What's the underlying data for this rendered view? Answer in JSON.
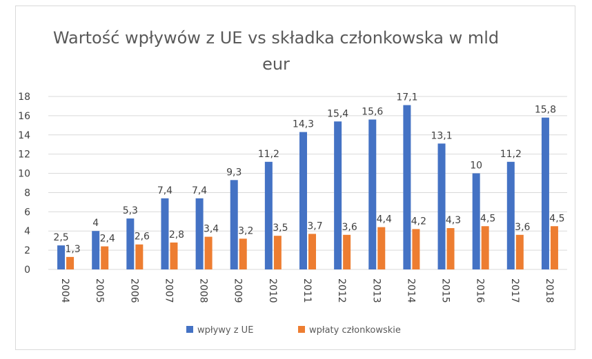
{
  "chart_data": {
    "type": "bar",
    "title": "Wartość wpływów z UE vs składka członkowska w mld eur",
    "categories": [
      "2004",
      "2005",
      "2006",
      "2007",
      "2008",
      "2009",
      "2010",
      "2011",
      "2012",
      "2013",
      "2014",
      "2015",
      "2016",
      "2017",
      "2018"
    ],
    "series": [
      {
        "name": "wpływy z UE",
        "color": "#4472C4",
        "values": [
          2.5,
          4,
          5.3,
          7.4,
          7.4,
          9.3,
          11.2,
          14.3,
          15.4,
          15.6,
          17.1,
          13.1,
          10,
          11.2,
          15.8
        ],
        "labels": [
          "2,5",
          "4",
          "5,3",
          "7,4",
          "7,4",
          "9,3",
          "11,2",
          "14,3",
          "15,4",
          "15,6",
          "17,1",
          "13,1",
          "10",
          "11,2",
          "15,8"
        ]
      },
      {
        "name": "wpłaty członkowskie",
        "color": "#ED7D31",
        "values": [
          1.3,
          2.4,
          2.6,
          2.8,
          3.4,
          3.2,
          3.5,
          3.7,
          3.6,
          4.4,
          4.2,
          4.3,
          4.5,
          3.6,
          4.5
        ],
        "labels": [
          "1,3",
          "2,4",
          "2,6",
          "2,8",
          "3,4",
          "3,2",
          "3,5",
          "3,7",
          "3,6",
          "4,4",
          "4,2",
          "4,3",
          "4,5",
          "3,6",
          "4,5"
        ]
      }
    ],
    "ylim": [
      0,
      18
    ],
    "yticks": [
      "0",
      "2",
      "4",
      "6",
      "8",
      "10",
      "12",
      "14",
      "16",
      "18"
    ],
    "grid": true,
    "legend_position": "bottom",
    "gridline_color": "#d9d9d9"
  }
}
